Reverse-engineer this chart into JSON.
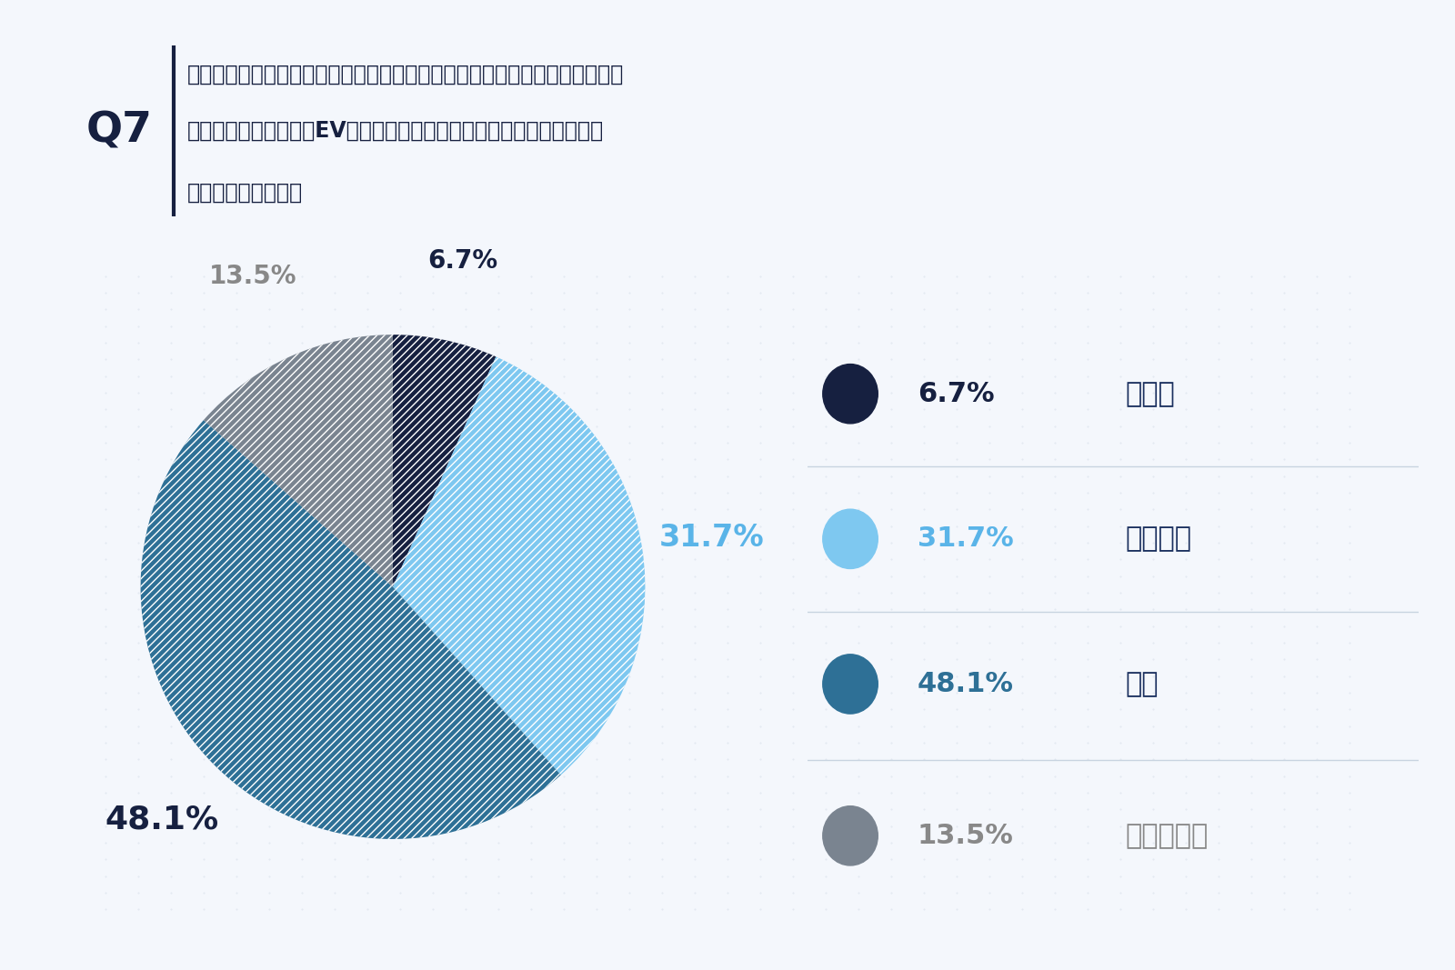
{
  "title_q": "Q7",
  "title_text_line1": "法改正（生命保険業界のバレンタインショック・少額短期保険の保険金額の",
  "title_text_line2": "経過措置等・自動車のEV化等）の影響で保険業界の先行きに対しては",
  "title_text_line3": "いかがでしょうか。",
  "slices": [
    6.7,
    31.7,
    48.1,
    13.5
  ],
  "slice_labels": [
    "6.7%",
    "31.7%",
    "48.1%",
    "13.5%"
  ],
  "slice_colors": [
    "#162040",
    "#7ec8f0",
    "#2e7096",
    "#7a8490"
  ],
  "slice_label_colors": [
    "#162040",
    "#5ab4e8",
    "#162040",
    "#888888"
  ],
  "legend_pct": [
    "6.7%",
    "31.7%",
    "48.1%",
    "13.5%"
  ],
  "legend_pct_colors": [
    "#162040",
    "#5ab4e8",
    "#2e7096",
    "#888888"
  ],
  "legend_dot_colors": [
    "#162040",
    "#7ec8f0",
    "#2e7096",
    "#7a8490"
  ],
  "legend_labels": [
    "明るい",
    "現状維持",
    "暗い",
    "わからない"
  ],
  "legend_label_colors": [
    "#1a2f5e",
    "#1a2f5e",
    "#1a2f5e",
    "#888888"
  ],
  "bg_color": "#ffffff",
  "outer_bg": "#f4f7fc",
  "header_bg": "#deeaf5",
  "chart_area_bg": "#edf2f8",
  "divider_line_color": "#2c5f8a",
  "q7_color": "#162040",
  "title_text_color": "#162040"
}
